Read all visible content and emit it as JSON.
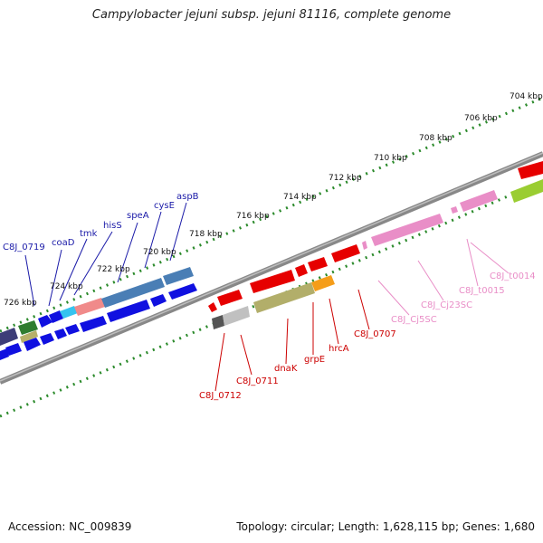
{
  "title": "Campylobacter jejuni subsp. jejuni 81116, complete genome",
  "footer": {
    "accession": "Accession: NC_009839",
    "topology": "Topology: circular; Length: 1,628,115 bp; Genes: 1,680"
  },
  "scale_labels": [
    "704 kbp",
    "706 kbp",
    "708 kbp",
    "710 kbp",
    "712 kbp",
    "714 kbp",
    "716 kbp",
    "718 kbp",
    "720 kbp",
    "722 kbp",
    "724 kbp",
    "726 kbp"
  ],
  "gene_labels_top": [
    "C8J_0719",
    "coaD",
    "tmk",
    "hisS",
    "speA",
    "cysE",
    "aspB"
  ],
  "gene_labels_bottom_red": [
    "C8J_0712",
    "C8J_0711",
    "dnaK",
    "grpE",
    "hrcA",
    "C8J_0707"
  ],
  "gene_labels_bottom_pink": [
    "C8J_Cj5SC",
    "C8J_Cj23SC",
    "C8J_t0015",
    "C8J_t0014"
  ],
  "colors": {
    "blue_label": "#1a1aa8",
    "red_label": "#cc0000",
    "pink_label": "#e98ec7",
    "dot_green": "#2b8a2b",
    "backbone": "#8c8c8c"
  }
}
